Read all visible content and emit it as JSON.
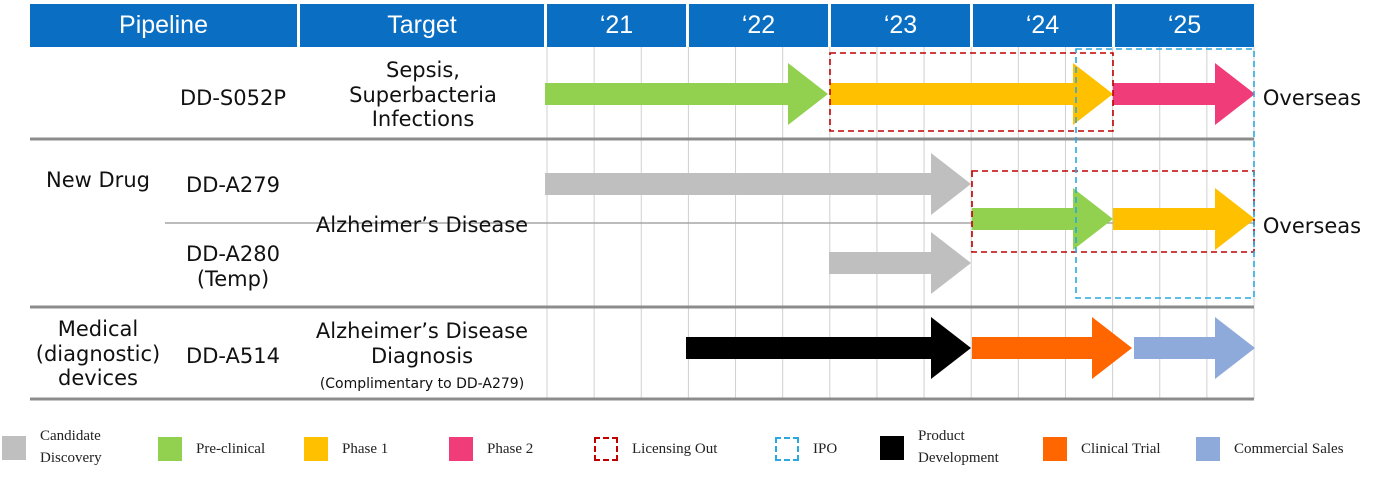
{
  "header": {
    "pipeline": "Pipeline",
    "target": "Target",
    "years": [
      "‘21",
      "‘22",
      "‘23",
      "‘24",
      "‘25"
    ]
  },
  "rows": {
    "category_new_drug": "New Drug",
    "category_medical": "Medical (diagnostic) devices",
    "ds052p": {
      "name": "DD-S052P",
      "target": "Sepsis, Superbacteria Infections",
      "outcome": "Overseas"
    },
    "da279": {
      "name": "DD-A279"
    },
    "da280": {
      "name": "DD-A280 (Temp)"
    },
    "alz_target": "Alzheimer’s Disease",
    "alz_outcome": "Overseas",
    "da514": {
      "name": "DD-A514",
      "target": "Alzheimer’s Disease Diagnosis",
      "note": "(Complimentary to DD-A279)"
    }
  },
  "colors": {
    "header": "#0a6fc2",
    "candidate_discovery": "#bfbfbf",
    "pre_clinical": "#92d050",
    "phase1": "#ffc000",
    "phase2": "#f03c78",
    "licensing_out": "#c00000",
    "ipo": "#2aa8e0",
    "product_development": "#000000",
    "clinical_trial": "#ff6600",
    "commercial_sales": "#8eaadb"
  },
  "legend": [
    {
      "label": "Candidate Discovery",
      "icon": "candidate-discovery"
    },
    {
      "label": "Pre-clinical",
      "icon": "pre-clinical"
    },
    {
      "label": "Phase 1",
      "icon": "phase1"
    },
    {
      "label": "Phase 2",
      "icon": "phase2"
    },
    {
      "label": "Licensing Out",
      "icon": "licensing-out-dashed-box"
    },
    {
      "label": "IPO",
      "icon": "ipo-dashed-box"
    },
    {
      "label": "Product Development",
      "icon": "product-development"
    },
    {
      "label": "Clinical Trial",
      "icon": "clinical-trial"
    },
    {
      "label": "Commercial Sales",
      "icon": "commercial-sales"
    }
  ]
}
